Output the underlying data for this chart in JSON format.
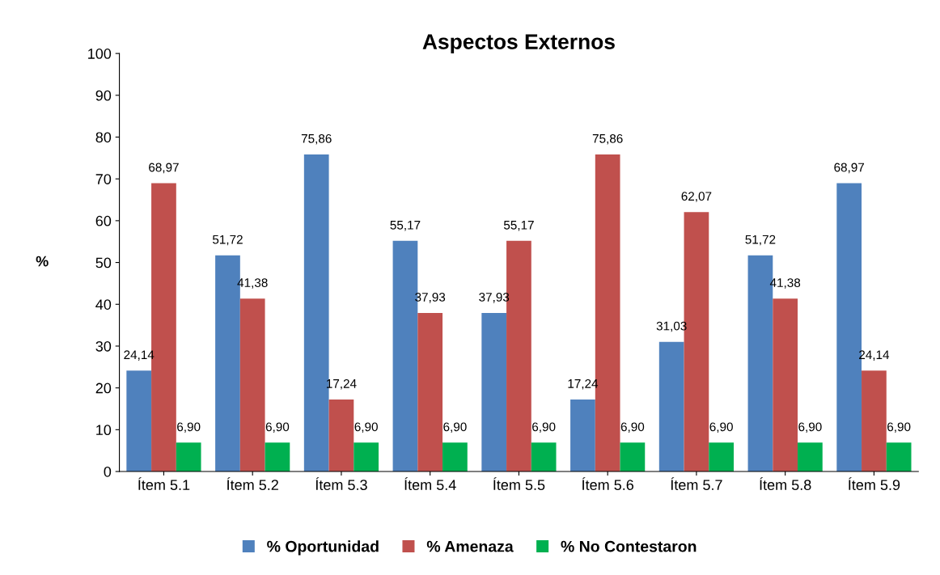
{
  "chart_data": {
    "type": "bar",
    "title": "Aspectos Externos",
    "ylabel": "%",
    "categories": [
      "Ítem 5.1",
      "Ítem 5.2",
      "Ítem 5.3",
      "Ítem 5.4",
      "Ítem 5.5",
      "Ítem 5.6",
      "Ítem 5.7",
      "Ítem 5.8",
      "Ítem 5.9"
    ],
    "series": [
      {
        "name": "% Oportunidad",
        "color": "#4f81bd",
        "values": [
          24.14,
          51.72,
          75.86,
          55.17,
          37.93,
          17.24,
          31.03,
          51.72,
          68.97
        ],
        "value_labels": [
          "24,14",
          "51,72",
          "75,86",
          "55,17",
          "37,93",
          "17,24",
          "31,03",
          "51,72",
          "68,97"
        ]
      },
      {
        "name": "% Amenaza",
        "color": "#c0504d",
        "values": [
          68.97,
          41.38,
          17.24,
          37.93,
          55.17,
          75.86,
          62.07,
          41.38,
          24.14
        ],
        "value_labels": [
          "68,97",
          "41,38",
          "17,24",
          "37,93",
          "55,17",
          "75,86",
          "62,07",
          "41,38",
          "24,14"
        ]
      },
      {
        "name": "% No Contestaron",
        "color": "#00b050",
        "values": [
          6.9,
          6.9,
          6.9,
          6.9,
          6.9,
          6.9,
          6.9,
          6.9,
          6.9
        ],
        "value_labels": [
          "6,90",
          "6,90",
          "6,90",
          "6,90",
          "6,90",
          "6,90",
          "6,90",
          "6,90",
          "6,90"
        ]
      }
    ],
    "ylim": [
      0,
      100
    ],
    "yticks": [
      0,
      10,
      20,
      30,
      40,
      50,
      60,
      70,
      80,
      90,
      100
    ],
    "grid": false,
    "legend": "bottom"
  }
}
